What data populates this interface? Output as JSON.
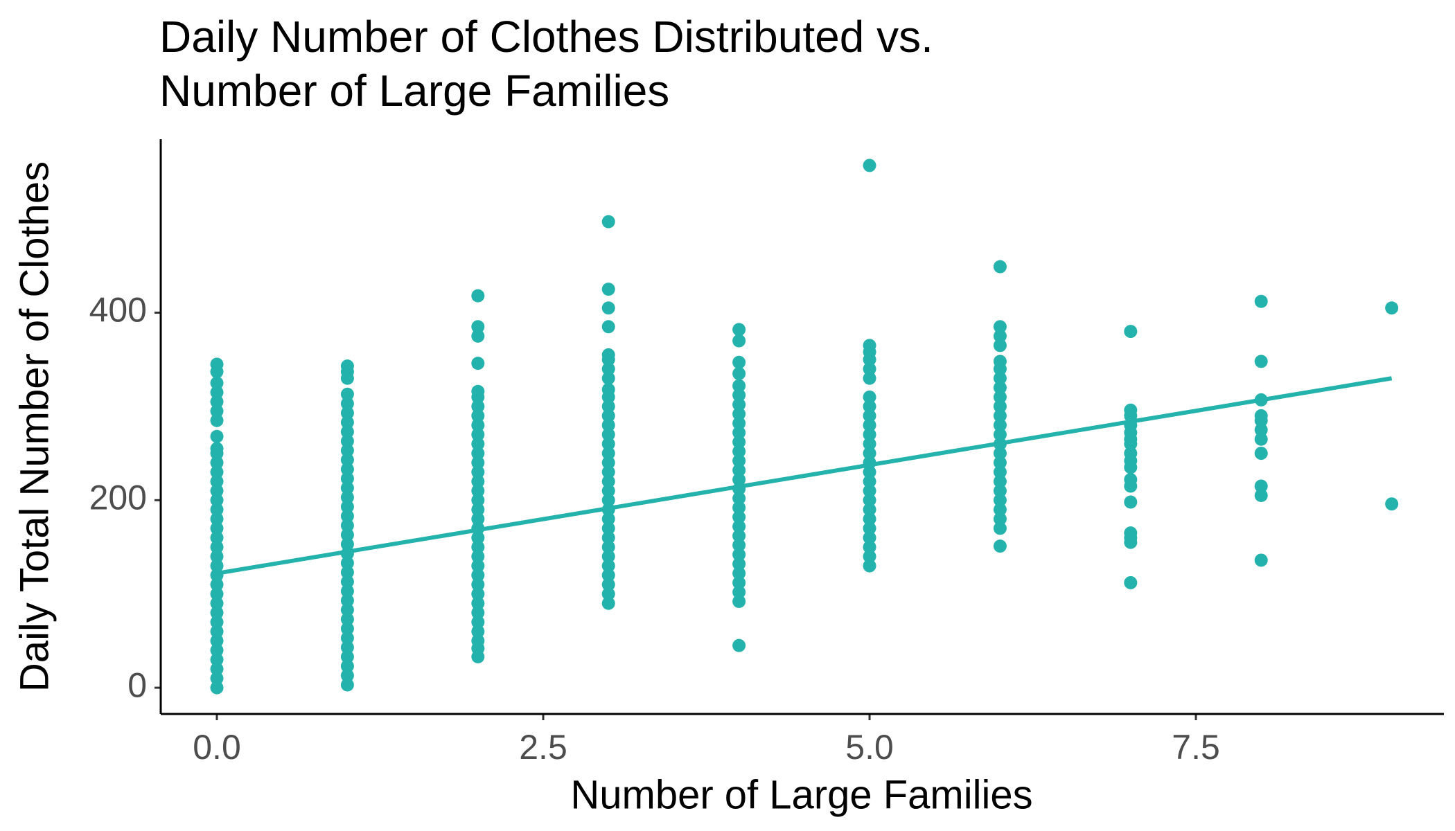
{
  "chart_data": {
    "type": "scatter",
    "title": [
      "Daily Number of Clothes Distributed vs.",
      "Number of Large Families"
    ],
    "x_label": "Number of Large Families",
    "y_label": "Daily Total Number of Clothes",
    "color": "#23b3ac",
    "xlim": [
      -0.43,
      9.4
    ],
    "ylim": [
      -28,
      585
    ],
    "xticks": [
      {
        "value": 0,
        "label": "0.0"
      },
      2.5,
      {
        "value": 5,
        "label": "5.0"
      },
      7.5
    ],
    "yticks": [
      0,
      200,
      400
    ],
    "grid": false,
    "points": [
      {
        "x": 0,
        "y": [
          0,
          10,
          20,
          30,
          40,
          50,
          60,
          70,
          80,
          90,
          100,
          110,
          120,
          130,
          140,
          150,
          160,
          170,
          180,
          190,
          200,
          210,
          220,
          230,
          240,
          250,
          255,
          268,
          285,
          295,
          305,
          315,
          325,
          337,
          345
        ]
      },
      {
        "x": 1,
        "y": [
          3,
          13,
          23,
          33,
          43,
          53,
          63,
          73,
          83,
          93,
          103,
          113,
          123,
          133,
          143,
          153,
          163,
          173,
          183,
          193,
          203,
          213,
          223,
          233,
          243,
          253,
          263,
          273,
          283,
          293,
          303,
          313,
          330,
          337,
          343
        ]
      },
      {
        "x": 2,
        "y": [
          33,
          42,
          50,
          60,
          70,
          80,
          90,
          100,
          110,
          120,
          130,
          140,
          150,
          160,
          170,
          180,
          190,
          200,
          210,
          220,
          230,
          240,
          250,
          260,
          270,
          280,
          290,
          300,
          310,
          316,
          346,
          375,
          385,
          418
        ]
      },
      {
        "x": 3,
        "y": [
          90,
          100,
          110,
          120,
          130,
          140,
          150,
          160,
          170,
          180,
          190,
          200,
          210,
          220,
          230,
          240,
          250,
          260,
          270,
          280,
          290,
          300,
          310,
          318,
          330,
          340,
          350,
          355,
          385,
          405,
          425,
          497
        ]
      },
      {
        "x": 4,
        "y": [
          45,
          92,
          102,
          112,
          122,
          132,
          142,
          152,
          162,
          172,
          182,
          192,
          202,
          212,
          222,
          232,
          242,
          252,
          262,
          272,
          282,
          292,
          302,
          312,
          322,
          335,
          347,
          370,
          382
        ]
      },
      {
        "x": 5,
        "y": [
          130,
          140,
          150,
          160,
          170,
          180,
          190,
          200,
          210,
          220,
          230,
          240,
          250,
          260,
          270,
          280,
          290,
          300,
          310,
          330,
          340,
          350,
          358,
          365,
          557
        ]
      },
      {
        "x": 6,
        "y": [
          151,
          170,
          180,
          190,
          200,
          210,
          220,
          230,
          240,
          250,
          260,
          270,
          280,
          290,
          300,
          310,
          320,
          330,
          340,
          348,
          365,
          375,
          385,
          449
        ]
      },
      {
        "x": 7,
        "y": [
          112,
          155,
          160,
          165,
          198,
          215,
          222,
          235,
          242,
          250,
          260,
          265,
          272,
          280,
          290,
          296,
          380
        ]
      },
      {
        "x": 8,
        "y": [
          136,
          205,
          215,
          250,
          265,
          275,
          285,
          290,
          307,
          348,
          412
        ]
      },
      {
        "x": 9,
        "y": [
          196,
          405
        ]
      }
    ],
    "trend": {
      "x": [
        0,
        9
      ],
      "y": [
        122,
        330
      ]
    }
  }
}
